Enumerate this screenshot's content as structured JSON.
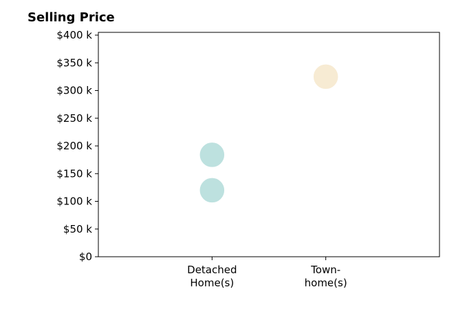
{
  "chart_data": {
    "type": "scatter",
    "title": "Selling Price",
    "xlabel": "",
    "ylabel": "",
    "categories": [
      [
        "Detached",
        "Home(s)"
      ],
      [
        "Town-",
        "home(s)"
      ]
    ],
    "xlim": [
      -1,
      2
    ],
    "ylim": [
      0,
      405000
    ],
    "y_ticks": [
      {
        "value": 0,
        "label": "$0"
      },
      {
        "value": 50000,
        "label": "$50 k"
      },
      {
        "value": 100000,
        "label": "$100 k"
      },
      {
        "value": 150000,
        "label": "$150 k"
      },
      {
        "value": 200000,
        "label": "$200 k"
      },
      {
        "value": 250000,
        "label": "$250 k"
      },
      {
        "value": 300000,
        "label": "$300 k"
      },
      {
        "value": 350000,
        "label": "$350 k"
      },
      {
        "value": 400000,
        "label": "$400 k"
      }
    ],
    "points": [
      {
        "category": 0,
        "value": 120000,
        "color": "#bde1df"
      },
      {
        "category": 0,
        "value": 184000,
        "color": "#bde1df"
      },
      {
        "category": 1,
        "value": 325000,
        "color": "#f7ebd3"
      }
    ],
    "grid": false,
    "legend": "none"
  }
}
